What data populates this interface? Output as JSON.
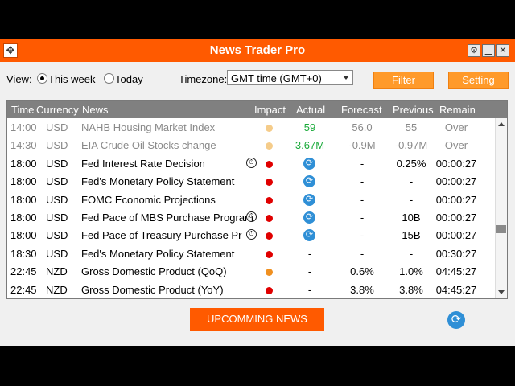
{
  "window": {
    "title": "News Trader Pro",
    "icons": {
      "move": "move-icon",
      "gear": "gear-icon",
      "minimize": "minimize-icon",
      "close": "close-icon"
    },
    "glyphs": {
      "move": "✥",
      "gear": "⚙",
      "minimize": "▁",
      "close": "✕"
    }
  },
  "toolbar": {
    "view_label": "View:",
    "this_week_label": "This week",
    "today_label": "Today",
    "selected_view": "This week",
    "timezone_label": "Timezone:",
    "timezone_value": "GMT time (GMT+0)",
    "filter_label": "Filter",
    "setting_label": "Setting"
  },
  "table": {
    "columns": [
      "Time",
      "Currency",
      "News",
      "Impact",
      "Actual",
      "Forecast",
      "Previous",
      "Remain"
    ],
    "rows": [
      {
        "time": "14:00",
        "currency": "USD",
        "news": "NAHB Housing Market Index",
        "timer": false,
        "impact": "low",
        "actual": "59",
        "actual_style": "green",
        "forecast": "56.0",
        "previous": "55",
        "remain": "Over",
        "past": true
      },
      {
        "time": "14:30",
        "currency": "USD",
        "news": "EIA Crude Oil Stocks change",
        "timer": false,
        "impact": "low",
        "actual": "3.67M",
        "actual_style": "green",
        "forecast": "-0.9M",
        "previous": "-0.97M",
        "remain": "Over",
        "past": true
      },
      {
        "time": "18:00",
        "currency": "USD",
        "news": "Fed Interest Rate Decision",
        "timer": true,
        "impact": "high",
        "actual": "refresh",
        "forecast": "-",
        "previous": "0.25%",
        "remain": "00:00:27",
        "past": false
      },
      {
        "time": "18:00",
        "currency": "USD",
        "news": "Fed's Monetary Policy Statement",
        "timer": false,
        "impact": "high",
        "actual": "refresh",
        "forecast": "-",
        "previous": "-",
        "remain": "00:00:27",
        "past": false
      },
      {
        "time": "18:00",
        "currency": "USD",
        "news": "FOMC Economic Projections",
        "timer": false,
        "impact": "high",
        "actual": "refresh",
        "forecast": "-",
        "previous": "-",
        "remain": "00:00:27",
        "past": false
      },
      {
        "time": "18:00",
        "currency": "USD",
        "news": "Fed Pace of MBS Purchase Program",
        "timer": true,
        "impact": "high",
        "actual": "refresh",
        "forecast": "-",
        "previous": "10B",
        "remain": "00:00:27",
        "past": false
      },
      {
        "time": "18:00",
        "currency": "USD",
        "news": "Fed Pace of Treasury Purchase Pr",
        "timer": true,
        "impact": "high",
        "actual": "refresh",
        "forecast": "-",
        "previous": "15B",
        "remain": "00:00:27",
        "past": false
      },
      {
        "time": "18:30",
        "currency": "USD",
        "news": "Fed's Monetary Policy Statement",
        "timer": false,
        "impact": "high",
        "actual": "-",
        "forecast": "-",
        "previous": "-",
        "remain": "00:30:27",
        "past": false
      },
      {
        "time": "22:45",
        "currency": "NZD",
        "news": "Gross Domestic Product (QoQ)",
        "timer": false,
        "impact": "medium",
        "actual": "-",
        "forecast": "0.6%",
        "previous": "1.0%",
        "remain": "04:45:27",
        "past": false
      },
      {
        "time": "22:45",
        "currency": "NZD",
        "news": "Gross Domestic Product (YoY)",
        "timer": false,
        "impact": "high",
        "actual": "-",
        "forecast": "3.8%",
        "previous": "3.8%",
        "remain": "04:45:27",
        "past": false
      }
    ]
  },
  "impact_colors": {
    "low": "#f5cc8a",
    "medium": "#f09020",
    "high": "#e00000"
  },
  "colors": {
    "accent": "#ff5a00",
    "button": "#ff9a2a",
    "refresh": "#2f8fd6",
    "positive": "#1aaa3a"
  },
  "footer": {
    "upcoming_label": "UPCOMMING NEWS",
    "refresh_icon": "refresh-icon",
    "refresh_glyph": "⟳"
  },
  "timer_glyph": "⏱"
}
